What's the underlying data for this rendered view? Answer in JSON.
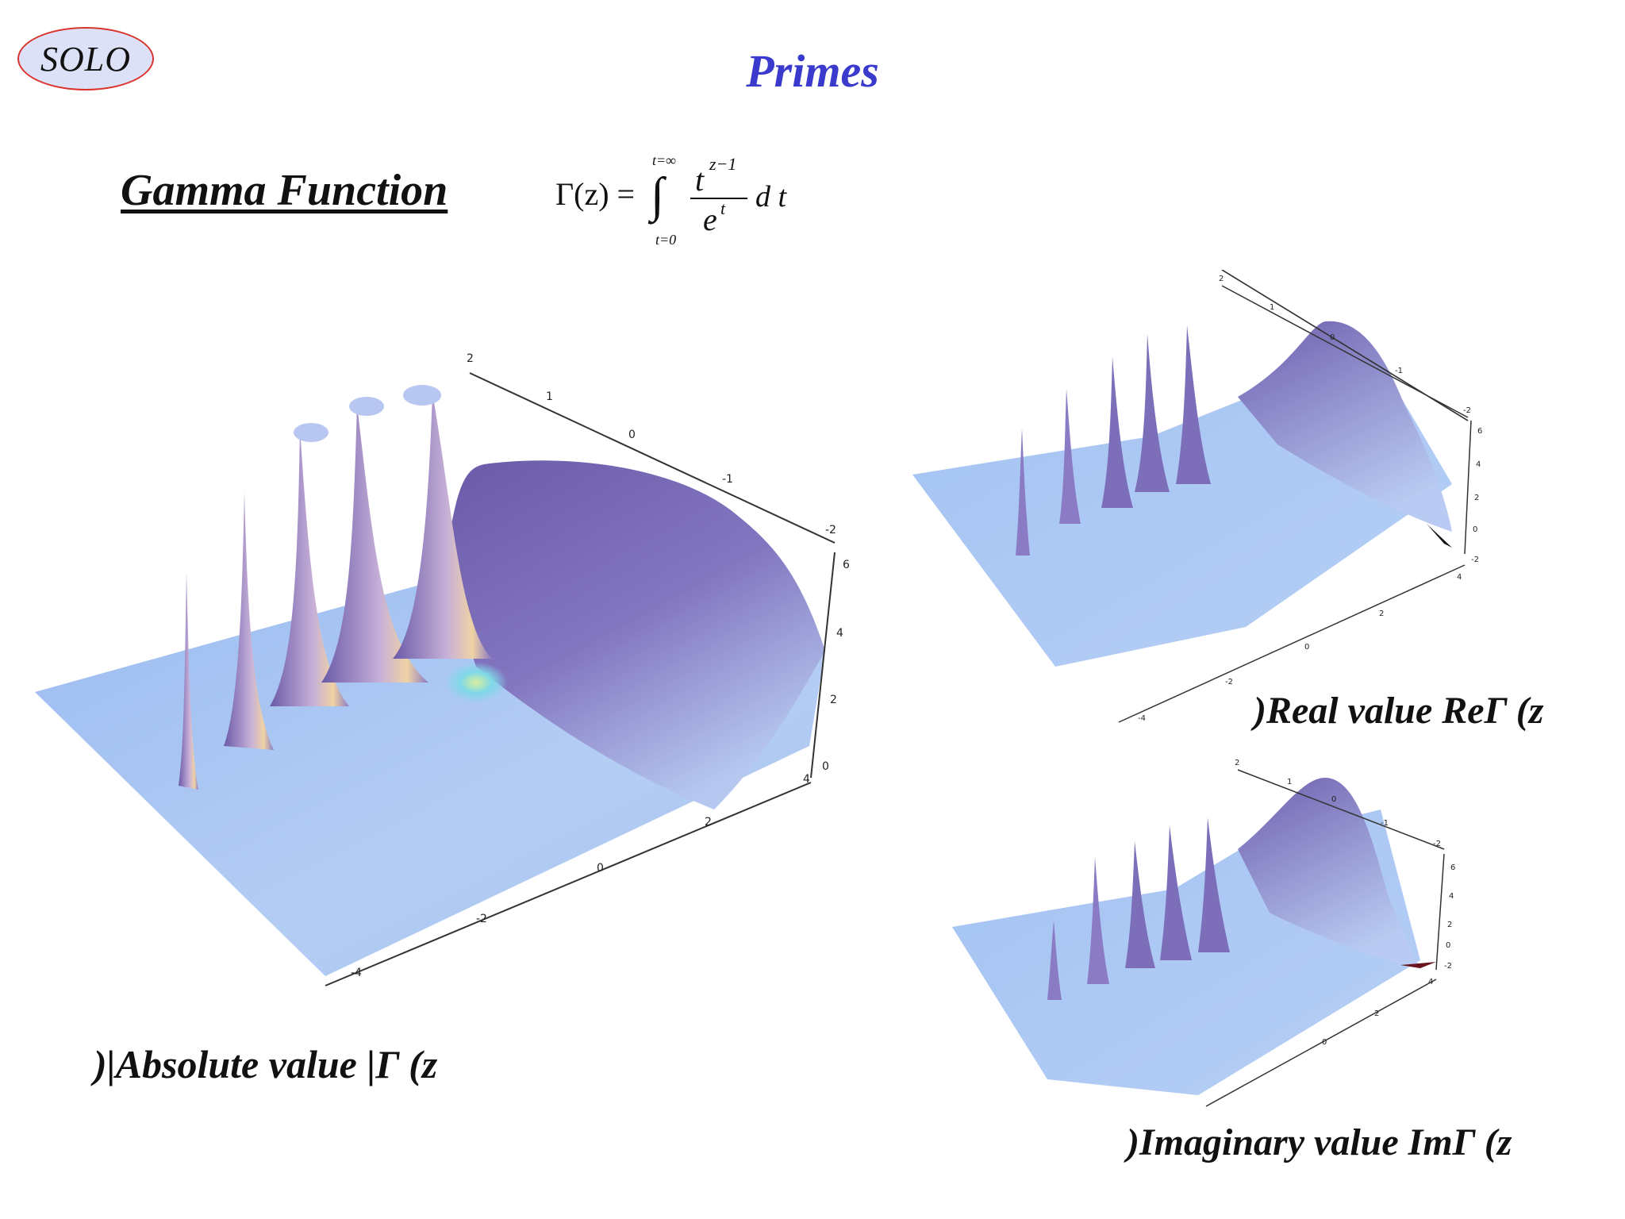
{
  "logo": {
    "text": "SOLO"
  },
  "page": {
    "title": "Primes",
    "subtitle": "Gamma Function"
  },
  "formula": {
    "lhs": "Γ(z) =",
    "upper_limit": "t=∞",
    "lower_limit": "t=0",
    "numerator": "t",
    "exponent": "z−1",
    "denominator": "e",
    "denominator_exponent": "t",
    "differential": "d t"
  },
  "captions": {
    "absolute": ")|Absolute value |Γ (z",
    "real": ")Real value ReΓ (z",
    "imaginary": ")Imaginary value ImΓ (z"
  },
  "plots": {
    "absolute": {
      "back_axis_ticks": [
        "2",
        "1",
        "0",
        "-1",
        "-2"
      ],
      "vertical_axis_ticks": [
        "6",
        "4",
        "2",
        "0"
      ],
      "front_axis_ticks": [
        "4",
        "2",
        "0",
        "-2",
        "-4"
      ]
    },
    "real": {
      "back_axis_ticks": [
        "2",
        "1",
        "0",
        "-1",
        "-2"
      ],
      "vertical_axis_ticks": [
        "6",
        "4",
        "2",
        "0",
        "-2"
      ],
      "front_axis_ticks": [
        "4",
        "2",
        "0",
        "-2",
        "-4"
      ]
    },
    "imaginary": {
      "back_axis_ticks": [
        "2",
        "1",
        "0",
        "-1",
        "-2"
      ],
      "vertical_axis_ticks": [
        "6",
        "4",
        "2",
        "0",
        "-2"
      ],
      "front_axis_ticks": [
        "4",
        "2",
        "0"
      ]
    }
  },
  "colors": {
    "title": "#3a3acc",
    "logo_border": "#d8322a",
    "logo_fill": "#dde1f7",
    "surface_light": "#a9c7f4",
    "surface_dark": "#6a5aa6"
  }
}
